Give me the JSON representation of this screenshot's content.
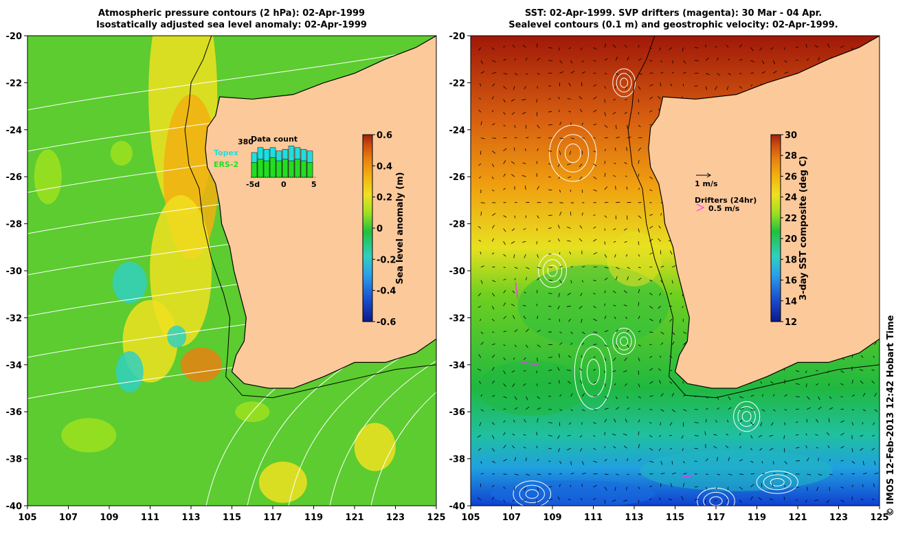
{
  "left_panel": {
    "title_line1": "Atmospheric pressure contours (2 hPa): 02-Apr-1999",
    "title_line2": "Isostatically adjusted sea level anomaly: 02-Apr-1999",
    "colorbar": {
      "label": "Sea level anomaly (m)",
      "ticks": [
        "0.6",
        "0.4",
        "0.2",
        "0",
        "-0.2",
        "-0.4",
        "-0.6"
      ],
      "colors": [
        "#0a1a8a",
        "#1a4fd0",
        "#2aa0e8",
        "#30d0c0",
        "#20c040",
        "#9ee020",
        "#f0e020",
        "#f2b010",
        "#e88010",
        "#d05010",
        "#a02010"
      ]
    },
    "inset": {
      "title": "Data count",
      "max_label": "380",
      "topex_label": "Topex",
      "ers_label": "ERS-2",
      "x_ticks": [
        "-5d",
        "0",
        "5"
      ],
      "topex_color": "#22dddd",
      "ers_color": "#22dd22",
      "bars": [
        {
          "day": -5,
          "ers": 0.45,
          "topex": 0.75
        },
        {
          "day": -4,
          "ers": 0.55,
          "topex": 0.9
        },
        {
          "day": -3,
          "ers": 0.5,
          "topex": 0.85
        },
        {
          "day": -2,
          "ers": 0.6,
          "topex": 0.9
        },
        {
          "day": -1,
          "ers": 0.5,
          "topex": 0.8
        },
        {
          "day": 0,
          "ers": 0.55,
          "topex": 0.85
        },
        {
          "day": 1,
          "ers": 0.5,
          "topex": 0.95
        },
        {
          "day": 2,
          "ers": 0.55,
          "topex": 0.9
        },
        {
          "day": 3,
          "ers": 0.5,
          "topex": 0.85
        },
        {
          "day": 4,
          "ers": 0.45,
          "topex": 0.8
        }
      ]
    }
  },
  "right_panel": {
    "title_line1": "SST: 02-Apr-1999. SVP drifters (magenta): 30 Mar - 04 Apr.",
    "title_line2": "Sealevel contours (0.1 m) and geostrophic velocity: 02-Apr-1999.",
    "colorbar": {
      "label": "3-day SST composite (deg C)",
      "ticks": [
        "30",
        "28",
        "26",
        "24",
        "22",
        "20",
        "18",
        "16",
        "14",
        "12"
      ],
      "colors": [
        "#0a1a8a",
        "#1a4fd0",
        "#2aa0e8",
        "#30d0c0",
        "#20c040",
        "#9ee020",
        "#f0e020",
        "#f2b010",
        "#e88010",
        "#d05010",
        "#a02010"
      ]
    },
    "legend": {
      "velocity_label": "1 m/s",
      "drifters_label": "Drifters (24hr)",
      "drifter_speed_label": "0.5 m/s",
      "drifter_color": "#ff30ff"
    }
  },
  "axes": {
    "lat_ticks": [
      "-20",
      "-22",
      "-24",
      "-26",
      "-28",
      "-30",
      "-32",
      "-34",
      "-36",
      "-38",
      "-40"
    ],
    "lon_ticks": [
      "105",
      "107",
      "109",
      "111",
      "113",
      "115",
      "117",
      "119",
      "121",
      "123",
      "125"
    ],
    "lat_range": [
      -40,
      -20
    ],
    "lon_range": [
      105,
      125
    ]
  },
  "map_colors": {
    "land": "#fcc99b",
    "ocean_base_left": "#5ccc30",
    "ocean_base_right_north": "#d97a10",
    "ocean_base_right_south": "#1a6de0"
  },
  "credit": "© IMOS 12-Feb-2013 12:42 Hobart Time"
}
